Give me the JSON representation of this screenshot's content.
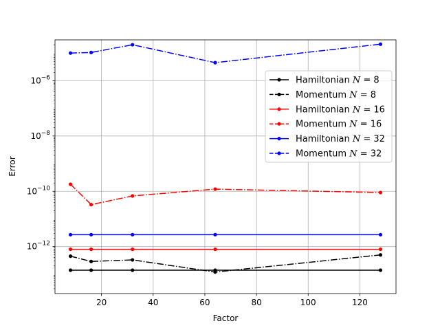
{
  "chart_data": {
    "type": "line",
    "xlabel": "Factor",
    "ylabel": "Error",
    "xlim": [
      2,
      134
    ],
    "ylim": [
      2e-14,
      3e-05
    ],
    "yscale": "log",
    "x_ticks": [
      20,
      40,
      60,
      80,
      100,
      120
    ],
    "x_tick_labels": [
      "20",
      "40",
      "60",
      "80",
      "100",
      "120"
    ],
    "y_ticks": [
      1e-12,
      1e-10,
      1e-08,
      1e-06
    ],
    "y_tick_labels": [
      {
        "base": "10",
        "exp": "−12"
      },
      {
        "base": "10",
        "exp": "−10"
      },
      {
        "base": "10",
        "exp": "−8"
      },
      {
        "base": "10",
        "exp": "−6"
      }
    ],
    "grid": true,
    "legend_position": "upper right",
    "series": [
      {
        "name": "Hamiltonian N = 8",
        "legend_prefix": "Hamiltonian",
        "legend_n": "8",
        "color": "#000000",
        "style": "solid",
        "x": [
          8,
          16,
          32,
          64,
          128
        ],
        "y": [
          1.4e-13,
          1.4e-13,
          1.4e-13,
          1.4e-13,
          1.4e-13
        ]
      },
      {
        "name": "Momentum N = 8",
        "legend_prefix": "Momentum",
        "legend_n": "8",
        "color": "#000000",
        "style": "dashdot",
        "x": [
          8,
          16,
          32,
          64,
          128
        ],
        "y": [
          4.5e-13,
          2.9e-13,
          3.3e-13,
          1.2e-13,
          5e-13
        ]
      },
      {
        "name": "Hamiltonian N = 16",
        "legend_prefix": "Hamiltonian",
        "legend_n": "16",
        "color": "#ff0000",
        "style": "solid",
        "x": [
          8,
          16,
          32,
          64,
          128
        ],
        "y": [
          8e-13,
          8e-13,
          8e-13,
          8e-13,
          8e-13
        ]
      },
      {
        "name": "Momentum N = 16",
        "legend_prefix": "Momentum",
        "legend_n": "16",
        "color": "#ff0000",
        "style": "dashdot",
        "x": [
          8,
          16,
          32,
          64,
          128
        ],
        "y": [
          1.8e-10,
          3.3e-11,
          6.8e-11,
          1.2e-10,
          9e-11
        ]
      },
      {
        "name": "Hamiltonian N = 32",
        "legend_prefix": "Hamiltonian",
        "legend_n": "32",
        "color": "#0000ff",
        "style": "solid",
        "x": [
          8,
          16,
          32,
          64,
          128
        ],
        "y": [
          2.7e-12,
          2.7e-12,
          2.7e-12,
          2.7e-12,
          2.7e-12
        ]
      },
      {
        "name": "Momentum N = 32",
        "legend_prefix": "Momentum",
        "legend_n": "32",
        "color": "#0000ff",
        "style": "dashdot",
        "x": [
          8,
          16,
          32,
          64,
          128
        ],
        "y": [
          1e-05,
          1.05e-05,
          2e-05,
          4.5e-06,
          2.1e-05
        ]
      }
    ]
  }
}
